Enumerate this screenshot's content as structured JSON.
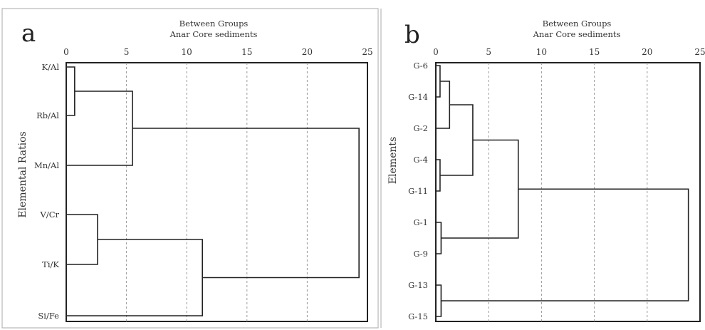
{
  "figure": {
    "panels": [
      {
        "letter": "a",
        "header1": "Between Groups",
        "header2": "Anar Core sediments",
        "ylabel": "Elemental Ratios"
      },
      {
        "letter": "b",
        "header1": "Between Groups",
        "header2": "Anar Core sediments",
        "ylabel": "Elements"
      }
    ]
  },
  "chart_data": [
    {
      "type": "dendrogram",
      "title": "Between Groups",
      "subtitle": "Anar Core sediments",
      "ylabel": "Elemental Ratios",
      "xlim": [
        0,
        25
      ],
      "xticks": [
        0,
        5,
        10,
        15,
        20,
        25
      ],
      "grid": "vertical dashed",
      "leaves": [
        "K/Al",
        "Rb/Al",
        "Mn/Al",
        "V/Cr",
        "Ti/K",
        "Si/Fe"
      ],
      "merges": [
        {
          "left": "K/Al",
          "right": "Rb/Al",
          "distance": 0.7
        },
        {
          "left": "(K/Al,Rb/Al)",
          "right": "Mn/Al",
          "distance": 5.5
        },
        {
          "left": "V/Cr",
          "right": "Ti/K",
          "distance": 2.6
        },
        {
          "left": "(V/Cr,Ti/K)",
          "right": "Si/Fe",
          "distance": 11.3
        },
        {
          "left": "(K/Al,Rb/Al,Mn/Al)",
          "right": "(V/Cr,Ti/K,Si/Fe)",
          "distance": 24.3
        }
      ]
    },
    {
      "type": "dendrogram",
      "title": "Between Groups",
      "subtitle": "Anar Core sediments",
      "ylabel": "Elements",
      "xlim": [
        0,
        25
      ],
      "xticks": [
        0,
        5,
        10,
        15,
        20,
        25
      ],
      "grid": "vertical dashed",
      "leaves": [
        "G-6",
        "G-14",
        "G-2",
        "G-4",
        "G-11",
        "G-1",
        "G-9",
        "G-13",
        "G-15"
      ],
      "merges": [
        {
          "left": "G-6",
          "right": "G-14",
          "distance": 0.4
        },
        {
          "left": "(G-6,G-14)",
          "right": "G-2",
          "distance": 1.3
        },
        {
          "left": "G-4",
          "right": "G-11",
          "distance": 0.4
        },
        {
          "left": "(G-6,G-14,G-2)",
          "right": "(G-4,G-11)",
          "distance": 3.5
        },
        {
          "left": "G-1",
          "right": "G-9",
          "distance": 0.5
        },
        {
          "left": "(G-6,G-14,G-2,G-4,G-11)",
          "right": "(G-1,G-9)",
          "distance": 7.8
        },
        {
          "left": "G-13",
          "right": "G-15",
          "distance": 0.5
        },
        {
          "left": "(G-6,...,G-9)",
          "right": "(G-13,G-15)",
          "distance": 23.9
        }
      ]
    }
  ]
}
